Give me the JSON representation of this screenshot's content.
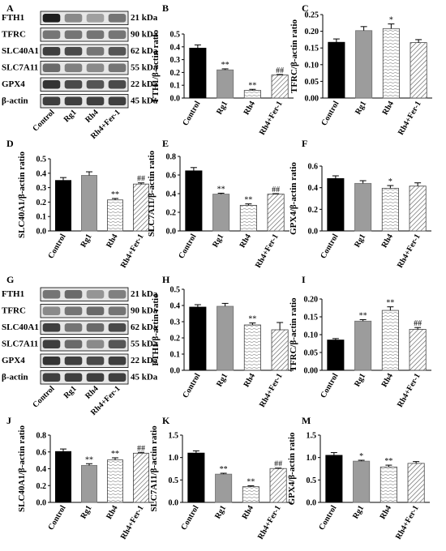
{
  "colors": {
    "control": "#000000",
    "rg1": "#9c9c9c",
    "rh4_border": "#444444",
    "hatch": "#555555",
    "band": "#1a1a1a"
  },
  "panels": [
    {
      "id": "blot1",
      "letter": "A",
      "bands": [
        {
          "label": "FTH1",
          "kda": "21 kDa"
        },
        {
          "label": "TFRC",
          "kda": "90 kDa"
        },
        {
          "label": "SLC40A1",
          "kda": "62 kDa"
        },
        {
          "label": "SLC7A11",
          "kda": "55 kDa"
        },
        {
          "label": "GPX4",
          "kda": "22 kDa"
        },
        {
          "label": "β-actin",
          "kda": "45 kDa"
        }
      ],
      "lanes": [
        "Control",
        "Rg1",
        "Rh4",
        "Rh4+Fer-1"
      ],
      "intensity": [
        [
          0.95,
          0.45,
          0.35,
          0.55
        ],
        [
          0.55,
          0.55,
          0.55,
          0.55
        ],
        [
          0.8,
          0.75,
          0.55,
          0.7
        ],
        [
          0.6,
          0.5,
          0.45,
          0.55
        ],
        [
          0.85,
          0.75,
          0.7,
          0.75
        ],
        [
          0.8,
          0.8,
          0.8,
          0.8
        ]
      ]
    },
    {
      "id": "blot2",
      "letter": "G",
      "bands": [
        {
          "label": "FTH1",
          "kda": "21 kDa"
        },
        {
          "label": "TFRC",
          "kda": "90 kDa"
        },
        {
          "label": "SLC40A1",
          "kda": "62 kDa"
        },
        {
          "label": "SLC7A11",
          "kda": "55 kDa"
        },
        {
          "label": "GPX4",
          "kda": "22 kDa"
        },
        {
          "label": "β-actin",
          "kda": "45 kDa"
        }
      ],
      "lanes": [
        "Control",
        "Rg1",
        "Rh4",
        "Rh4+Fer-1"
      ],
      "intensity": [
        [
          0.55,
          0.6,
          0.4,
          0.5
        ],
        [
          0.45,
          0.55,
          0.6,
          0.55
        ],
        [
          0.8,
          0.55,
          0.6,
          0.75
        ],
        [
          0.8,
          0.6,
          0.45,
          0.7
        ],
        [
          0.85,
          0.8,
          0.75,
          0.8
        ],
        [
          0.8,
          0.8,
          0.8,
          0.8
        ]
      ]
    }
  ],
  "chart_data": [
    {
      "letter": "B",
      "type": "bar",
      "ylabel": "FTH1/β-actin ratio",
      "ylim": [
        0,
        0.5
      ],
      "ticks": [
        "0.0",
        "0.1",
        "0.2",
        "0.3",
        "0.4",
        "0.5"
      ],
      "ticks_num": [
        0,
        0.1,
        0.2,
        0.3,
        0.4,
        0.5
      ],
      "categories": [
        "Control",
        "Rg1",
        "Rh4",
        "Rh4+Fer-1"
      ],
      "values": [
        0.39,
        0.22,
        0.06,
        0.18
      ],
      "errors": [
        0.025,
        0.008,
        0.008,
        0.004
      ],
      "marks": [
        "",
        "**",
        "**",
        "##"
      ]
    },
    {
      "letter": "C",
      "type": "bar",
      "ylabel": "TFRC/β-actin ratio",
      "ylim": [
        0,
        0.25
      ],
      "ticks": [
        "0.00",
        "0.05",
        "0.10",
        "0.15",
        "0.20",
        "0.25"
      ],
      "ticks_num": [
        0,
        0.05,
        0.1,
        0.15,
        0.2,
        0.25
      ],
      "categories": [
        "Control",
        "Rg1",
        "Rh4",
        "Rh4+Fer-1"
      ],
      "values": [
        0.167,
        0.202,
        0.208,
        0.166
      ],
      "errors": [
        0.01,
        0.012,
        0.014,
        0.009
      ],
      "marks": [
        "",
        "",
        "*",
        ""
      ]
    },
    {
      "letter": "D",
      "type": "bar",
      "ylabel": "SLC40A1/β-actin ratio",
      "ylim": [
        0,
        0.5
      ],
      "ticks": [
        "0.0",
        "0.1",
        "0.2",
        "0.3",
        "0.4",
        "0.5"
      ],
      "ticks_num": [
        0,
        0.1,
        0.2,
        0.3,
        0.4,
        0.5
      ],
      "categories": [
        "Control",
        "Rg1",
        "Rh4",
        "Rh4+Fer-1"
      ],
      "values": [
        0.35,
        0.385,
        0.215,
        0.325
      ],
      "errors": [
        0.02,
        0.025,
        0.01,
        0.008
      ],
      "marks": [
        "",
        "",
        "**",
        "##"
      ]
    },
    {
      "letter": "E",
      "type": "bar",
      "ylabel": "SLC7A11/β-actin ratio",
      "ylim": [
        0,
        0.8
      ],
      "ticks": [
        "0.0",
        "0.2",
        "0.4",
        "0.6",
        "0.8"
      ],
      "ticks_num": [
        0,
        0.2,
        0.4,
        0.6,
        0.8
      ],
      "categories": [
        "Control",
        "Rg1",
        "Rh4",
        "Rh4+Fer-1"
      ],
      "values": [
        0.645,
        0.395,
        0.275,
        0.395
      ],
      "errors": [
        0.035,
        0.01,
        0.015,
        0.005
      ],
      "marks": [
        "",
        "**",
        "**",
        "##"
      ]
    },
    {
      "letter": "F",
      "type": "bar",
      "ylabel": "GPX4/β-actin ratio",
      "ylim": [
        0,
        0.6
      ],
      "ticks": [
        "0.0",
        "0.2",
        "0.4",
        "0.6"
      ],
      "ticks_num": [
        0,
        0.2,
        0.4,
        0.6
      ],
      "categories": [
        "Control",
        "Rg1",
        "Rh4",
        "Rh4+Fer-1"
      ],
      "values": [
        0.485,
        0.44,
        0.395,
        0.415
      ],
      "errors": [
        0.025,
        0.025,
        0.025,
        0.03
      ],
      "marks": [
        "",
        "",
        "*",
        ""
      ]
    },
    {
      "letter": "H",
      "type": "bar",
      "ylabel": "FTH1/β-actin ratio",
      "ylim": [
        0,
        0.5
      ],
      "ticks": [
        "0.0",
        "0.1",
        "0.2",
        "0.3",
        "0.4",
        "0.5"
      ],
      "ticks_num": [
        0,
        0.1,
        0.2,
        0.3,
        0.4,
        0.5
      ],
      "categories": [
        "Control",
        "Rg1",
        "Rh4",
        "Rh4+Fer-1"
      ],
      "values": [
        0.39,
        0.395,
        0.28,
        0.25
      ],
      "errors": [
        0.015,
        0.018,
        0.012,
        0.045
      ],
      "marks": [
        "",
        "",
        "**",
        ""
      ]
    },
    {
      "letter": "I",
      "type": "bar",
      "ylabel": "TFRC/β-actin ratio",
      "ylim": [
        0,
        0.2
      ],
      "ticks": [
        "0.00",
        "0.05",
        "0.10",
        "0.15",
        "0.20"
      ],
      "ticks_num": [
        0,
        0.05,
        0.1,
        0.15,
        0.2
      ],
      "categories": [
        "Control",
        "Rg1",
        "Rh4",
        "Rh4+Fer-1"
      ],
      "values": [
        0.085,
        0.138,
        0.168,
        0.115
      ],
      "errors": [
        0.004,
        0.004,
        0.01,
        0.005
      ],
      "marks": [
        "",
        "**",
        "**",
        "##"
      ]
    },
    {
      "letter": "J",
      "type": "bar",
      "ylabel": "SLC40A1/β-actin ratio",
      "ylim": [
        0,
        0.8
      ],
      "ticks": [
        "0.0",
        "0.2",
        "0.4",
        "0.6",
        "0.8"
      ],
      "ticks_num": [
        0,
        0.2,
        0.4,
        0.6,
        0.8
      ],
      "categories": [
        "Control",
        "Rg1",
        "Rh4",
        "Rh4+Fer-1"
      ],
      "values": [
        0.605,
        0.44,
        0.505,
        0.585
      ],
      "errors": [
        0.03,
        0.02,
        0.025,
        0.01
      ],
      "marks": [
        "",
        "**",
        "**",
        "##"
      ]
    },
    {
      "letter": "K",
      "type": "bar",
      "ylabel": "SLC7A11/β-actin ratio",
      "ylim": [
        0,
        1.5
      ],
      "ticks": [
        "0.0",
        "0.5",
        "1.0",
        "1.5"
      ],
      "ticks_num": [
        0,
        0.5,
        1.0,
        1.5
      ],
      "categories": [
        "Control",
        "Rg1",
        "Rh4",
        "Rh4+Fer-1"
      ],
      "values": [
        1.1,
        0.63,
        0.35,
        0.755
      ],
      "errors": [
        0.05,
        0.02,
        0.02,
        0.01
      ],
      "marks": [
        "",
        "**",
        "**",
        "##"
      ]
    },
    {
      "letter": "M",
      "type": "bar",
      "ylabel": "GPX4/β-actin ratio",
      "ylim": [
        0,
        1.5
      ],
      "ticks": [
        "0.0",
        "0.5",
        "1.0",
        "1.5"
      ],
      "ticks_num": [
        0,
        0.5,
        1.0,
        1.5
      ],
      "categories": [
        "Control",
        "Rg1",
        "Rh4",
        "Rh4+Fer-1"
      ],
      "values": [
        1.05,
        0.92,
        0.79,
        0.87
      ],
      "errors": [
        0.06,
        0.02,
        0.04,
        0.04
      ],
      "marks": [
        "",
        "*",
        "**",
        ""
      ]
    }
  ]
}
